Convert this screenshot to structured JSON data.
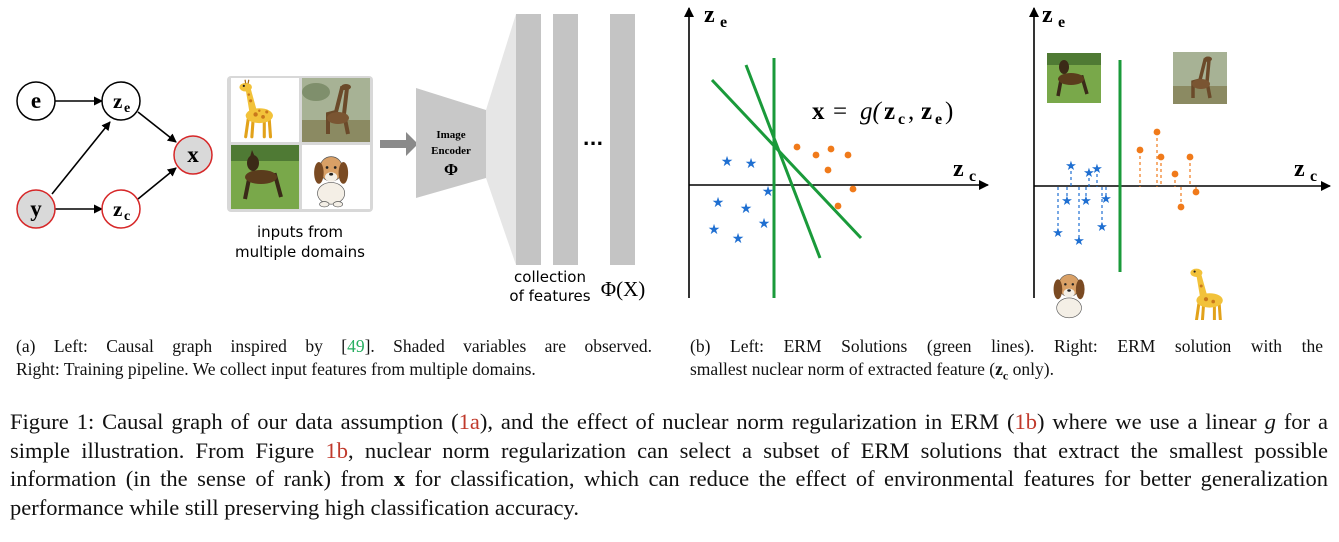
{
  "graph": {
    "nodes": {
      "e": "e",
      "y": "y",
      "x": "x",
      "ze_main": "z",
      "ze_sub": "e",
      "zc_main": "z",
      "zc_sub": "c"
    },
    "colors": {
      "observed_fill": "#d9d9d9",
      "red_outline": "#d62728"
    }
  },
  "pipeline": {
    "domains_label_line1": "inputs from",
    "domains_label_line2": "multiple domains",
    "encoder_line1": "Image",
    "encoder_line2": "Encoder",
    "encoder_symbol": "Φ",
    "ellipsis": "...",
    "features_label_line1": "collection",
    "features_label_line2": "of features",
    "phi_x": "Φ(X)",
    "images": [
      "giraffe-cartoon",
      "giraffe-photo",
      "dog-photo",
      "dog-cartoon"
    ]
  },
  "plot_left": {
    "axis_y_main": "z",
    "axis_y_sub": "e",
    "axis_x_main": "z",
    "axis_x_sub": "c",
    "equation": "x = g(zc, ze)",
    "eq_x": "x",
    "eq_eq": "=",
    "eq_g": "g(",
    "eq_zc": "z",
    "eq_c": "c",
    "eq_comma": ",",
    "eq_ze": "z",
    "eq_e": "e",
    "eq_close": ")",
    "colors": {
      "line": "#1a9a3a",
      "star": "#1f6fd1",
      "dot": "#f07a1a"
    }
  },
  "plot_right": {
    "axis_y_main": "z",
    "axis_y_sub": "e",
    "axis_x_main": "z",
    "axis_x_sub": "c",
    "images": [
      "dog-photo",
      "giraffe-photo",
      "dog-cartoon",
      "giraffe-cartoon"
    ]
  },
  "captions": {
    "a_line1_pre": "(a) Left:  Causal graph inspired by [",
    "a_ref": "49",
    "a_line1_post": "].  Shaded variables are observed.",
    "a_line2": "Right: Training pipeline. We collect input features from multiple domains.",
    "b_line1": "(b)  Left:  ERM Solutions (green lines).  Right:  ERM solution with the",
    "b_line2_pre": "smallest nuclear norm of extracted feature (",
    "b_line2_z": "z",
    "b_line2_c": "c",
    "b_line2_post": " only)."
  },
  "figure_caption": {
    "p1": "Figure 1: Causal graph of our data assumption (",
    "r1": "1a",
    "p2": "), and the effect of nuclear norm regularization in ERM (",
    "r2": "1b",
    "p3": ") where we use a linear ",
    "g": "g",
    "p4": " for a simple illustration. From Figure ",
    "r3": "1b",
    "p5": ", nuclear norm regularization can select a subset of ERM solutions that extract the smallest possible information (in the sense of rank) from ",
    "x": "x",
    "p6": " for classification, which can reduce the effect of environmental features for better generalization performance while still preserving high classification accuracy."
  }
}
